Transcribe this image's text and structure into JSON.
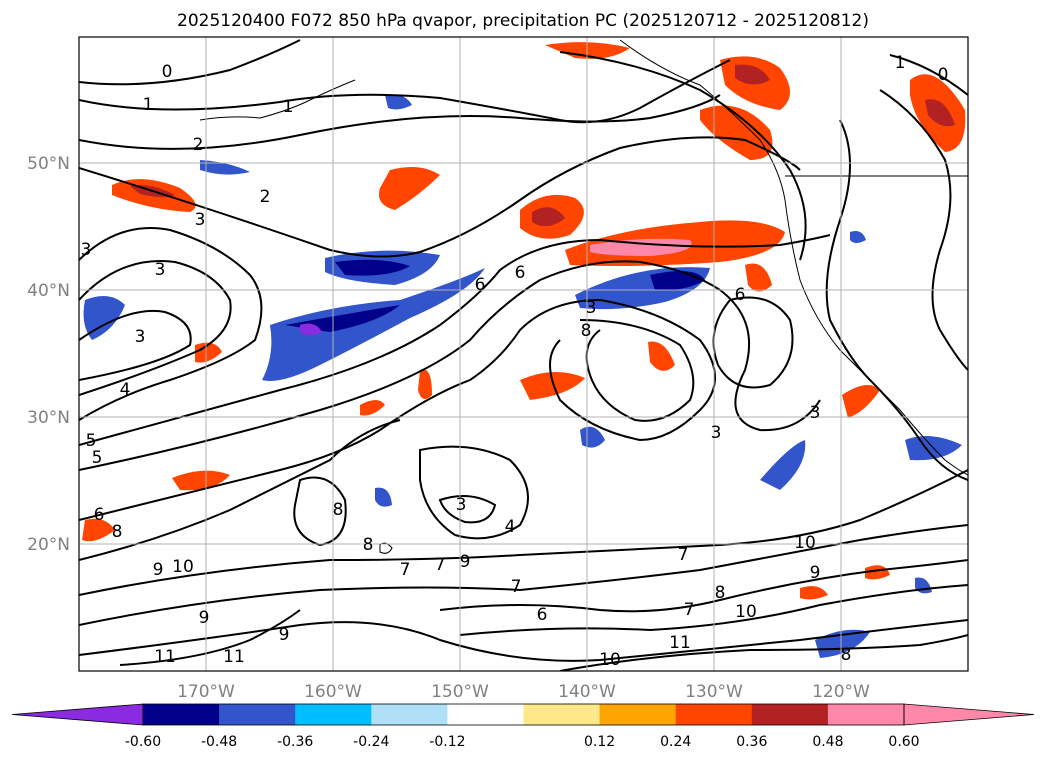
{
  "title": "2025120400 F072 850 hPa qvapor, precipitation PC (2025120712 - 2025120812)",
  "map": {
    "lon_ticks": [
      "170°W",
      "160°W",
      "150°W",
      "140°W",
      "130°W",
      "120°W"
    ],
    "lat_ticks": [
      "50°N",
      "40°N",
      "30°N",
      "20°N"
    ],
    "extent": {
      "lon": [
        -180,
        -110
      ],
      "lat": [
        10,
        60
      ]
    },
    "gridlines": true,
    "contour_color": "#000000",
    "contour_labels": [
      "0",
      "0",
      "1",
      "1",
      "1",
      "2",
      "2",
      "3",
      "3",
      "3",
      "3",
      "4",
      "5",
      "5",
      "6",
      "6",
      "6",
      "8",
      "3",
      "3",
      "3",
      "3",
      "4",
      "6",
      "8",
      "9",
      "10",
      "9",
      "9",
      "8",
      "8",
      "7",
      "7",
      "7",
      "10",
      "9",
      "7",
      "6",
      "7",
      "8",
      "10",
      "11",
      "10",
      "9",
      "11",
      "11",
      "8"
    ]
  },
  "colorbar": {
    "tick_labels": [
      "-0.60",
      "-0.48",
      "-0.36",
      "-0.24",
      "-0.12",
      "0.12",
      "0.24",
      "0.36",
      "0.48",
      "0.60"
    ],
    "colors": [
      "#8a2be2",
      "#00008b",
      "#3355cc",
      "#00bfff",
      "#b0e0f8",
      "#ffffff",
      "#ffe88a",
      "#ffa500",
      "#ff4500",
      "#b22222",
      "#ff88aa",
      "#ff88aa"
    ],
    "extend": "both"
  }
}
